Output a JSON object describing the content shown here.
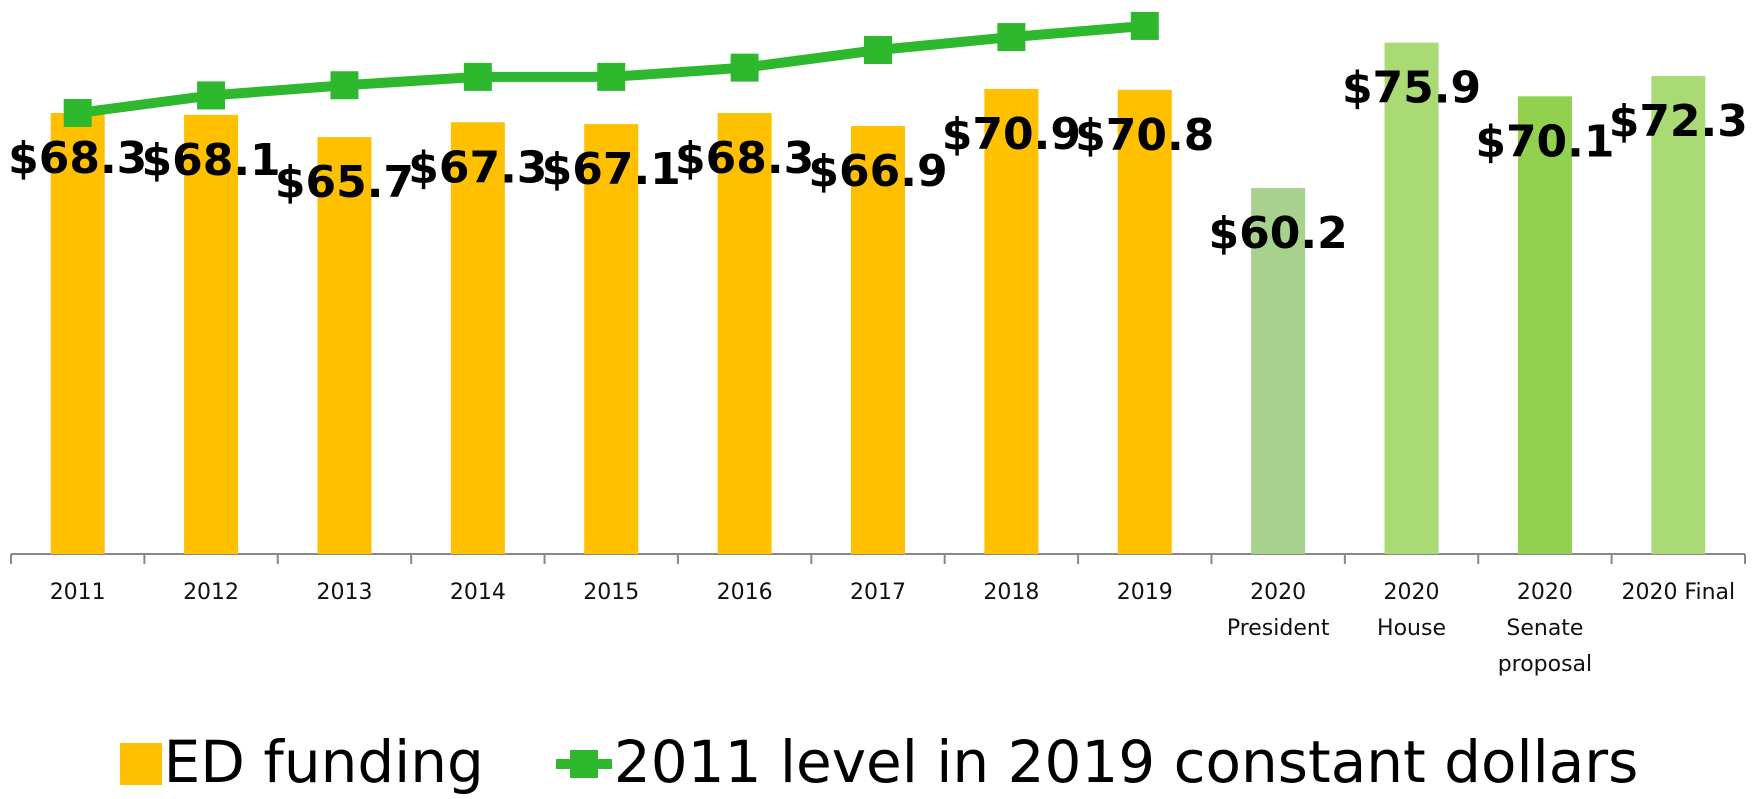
{
  "chart_data": {
    "type": "bar",
    "categories": [
      "2011",
      "2012",
      "2013",
      "2014",
      "2015",
      "2016",
      "2017",
      "2018",
      "2019",
      "2020\nPresident",
      "2020\nHouse",
      "2020\nSenate\nproposal",
      "2020 Final"
    ],
    "series": [
      {
        "name": "ED funding",
        "type": "bar",
        "color": "#ffc000",
        "colors": [
          "#ffc000",
          "#ffc000",
          "#ffc000",
          "#ffc000",
          "#ffc000",
          "#ffc000",
          "#ffc000",
          "#ffc000",
          "#ffc000",
          "#a9d18e",
          "#a9da74",
          "#92d050",
          "#a9da74"
        ],
        "values": [
          68.3,
          68.1,
          65.7,
          67.3,
          67.1,
          68.3,
          66.9,
          70.9,
          70.8,
          60.2,
          75.9,
          70.1,
          72.3
        ],
        "value_labels": [
          "$68.3",
          "$68.1",
          "$65.7",
          "$67.3",
          "$67.1",
          "$68.3",
          "$66.9",
          "$70.9",
          "$70.8",
          "$60.2",
          "$75.9",
          "$70.1",
          "$72.3"
        ]
      },
      {
        "name": "2011 level in 2019 constant dollars",
        "type": "line",
        "color": "#2eb82e",
        "values": [
          68.3,
          70.2,
          71.3,
          72.2,
          72.2,
          73.2,
          75.1,
          76.5,
          77.7,
          null,
          null,
          null,
          null
        ]
      }
    ],
    "ylim": [
      20.7,
      80.5
    ],
    "legend": "bottom"
  }
}
